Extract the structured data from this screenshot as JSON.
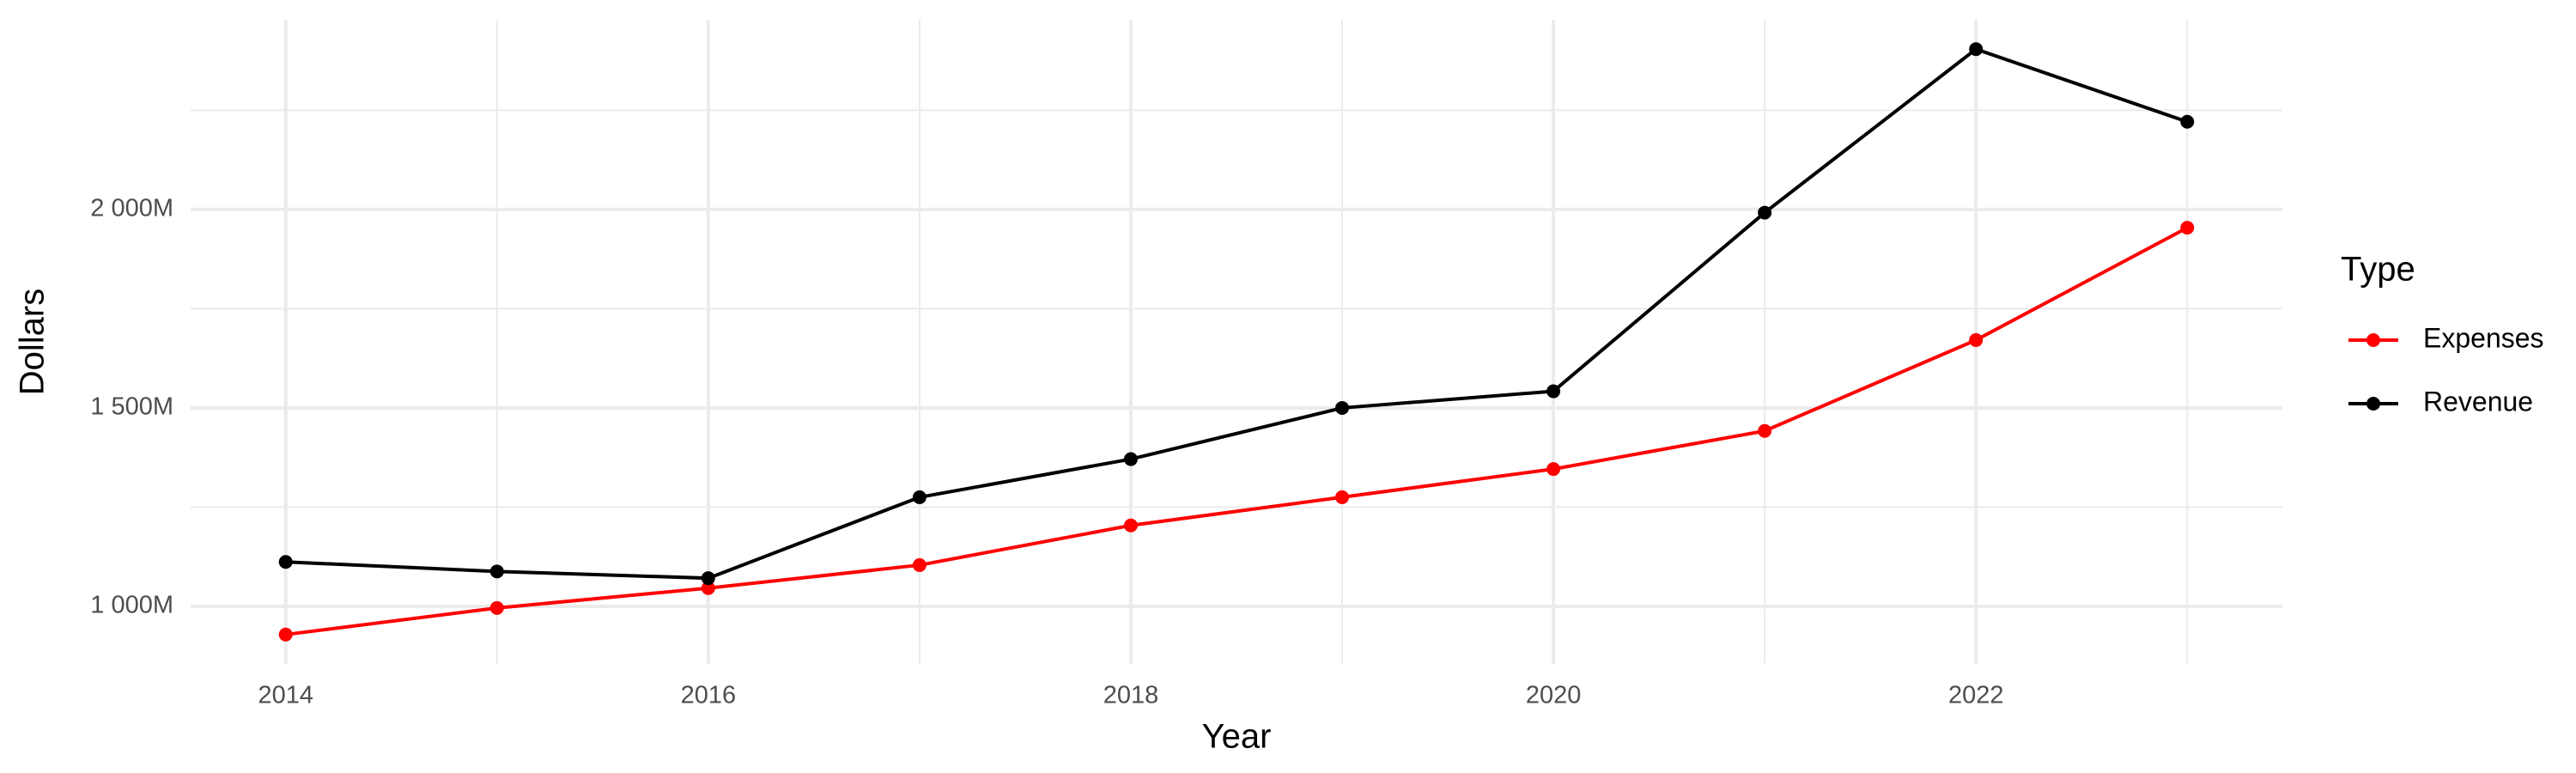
{
  "chart_data": {
    "type": "line",
    "x_label": "Year",
    "y_label": "Dollars",
    "x": [
      2014,
      2015,
      2016,
      2017,
      2018,
      2019,
      2020,
      2021,
      2022,
      2023
    ],
    "series": [
      {
        "name": "Expenses",
        "color": "#ff0000",
        "values": [
          929,
          996,
          1046,
          1104,
          1204,
          1275,
          1346,
          1442,
          1671,
          1954
        ]
      },
      {
        "name": "Revenue",
        "color": "#000000",
        "values": [
          1112,
          1088,
          1071,
          1275,
          1371,
          1500,
          1542,
          1992,
          2404,
          2221
        ]
      }
    ],
    "legend_title": "Type",
    "legend_position": "right",
    "xlim": [
      2013.55,
      2023.45
    ],
    "xticks": [
      2014,
      2016,
      2018,
      2020,
      2022
    ],
    "x_minor_grid": [
      2015,
      2017,
      2019,
      2021,
      2023
    ],
    "ylim": [
      855,
      2478
    ],
    "yticks": [
      {
        "value": 1000,
        "label": "1 000M"
      },
      {
        "value": 1500,
        "label": "1 500M"
      },
      {
        "value": 2000,
        "label": "2 000M"
      }
    ],
    "y_minor_grid": [
      1250,
      1750,
      2250
    ],
    "grid": true
  }
}
